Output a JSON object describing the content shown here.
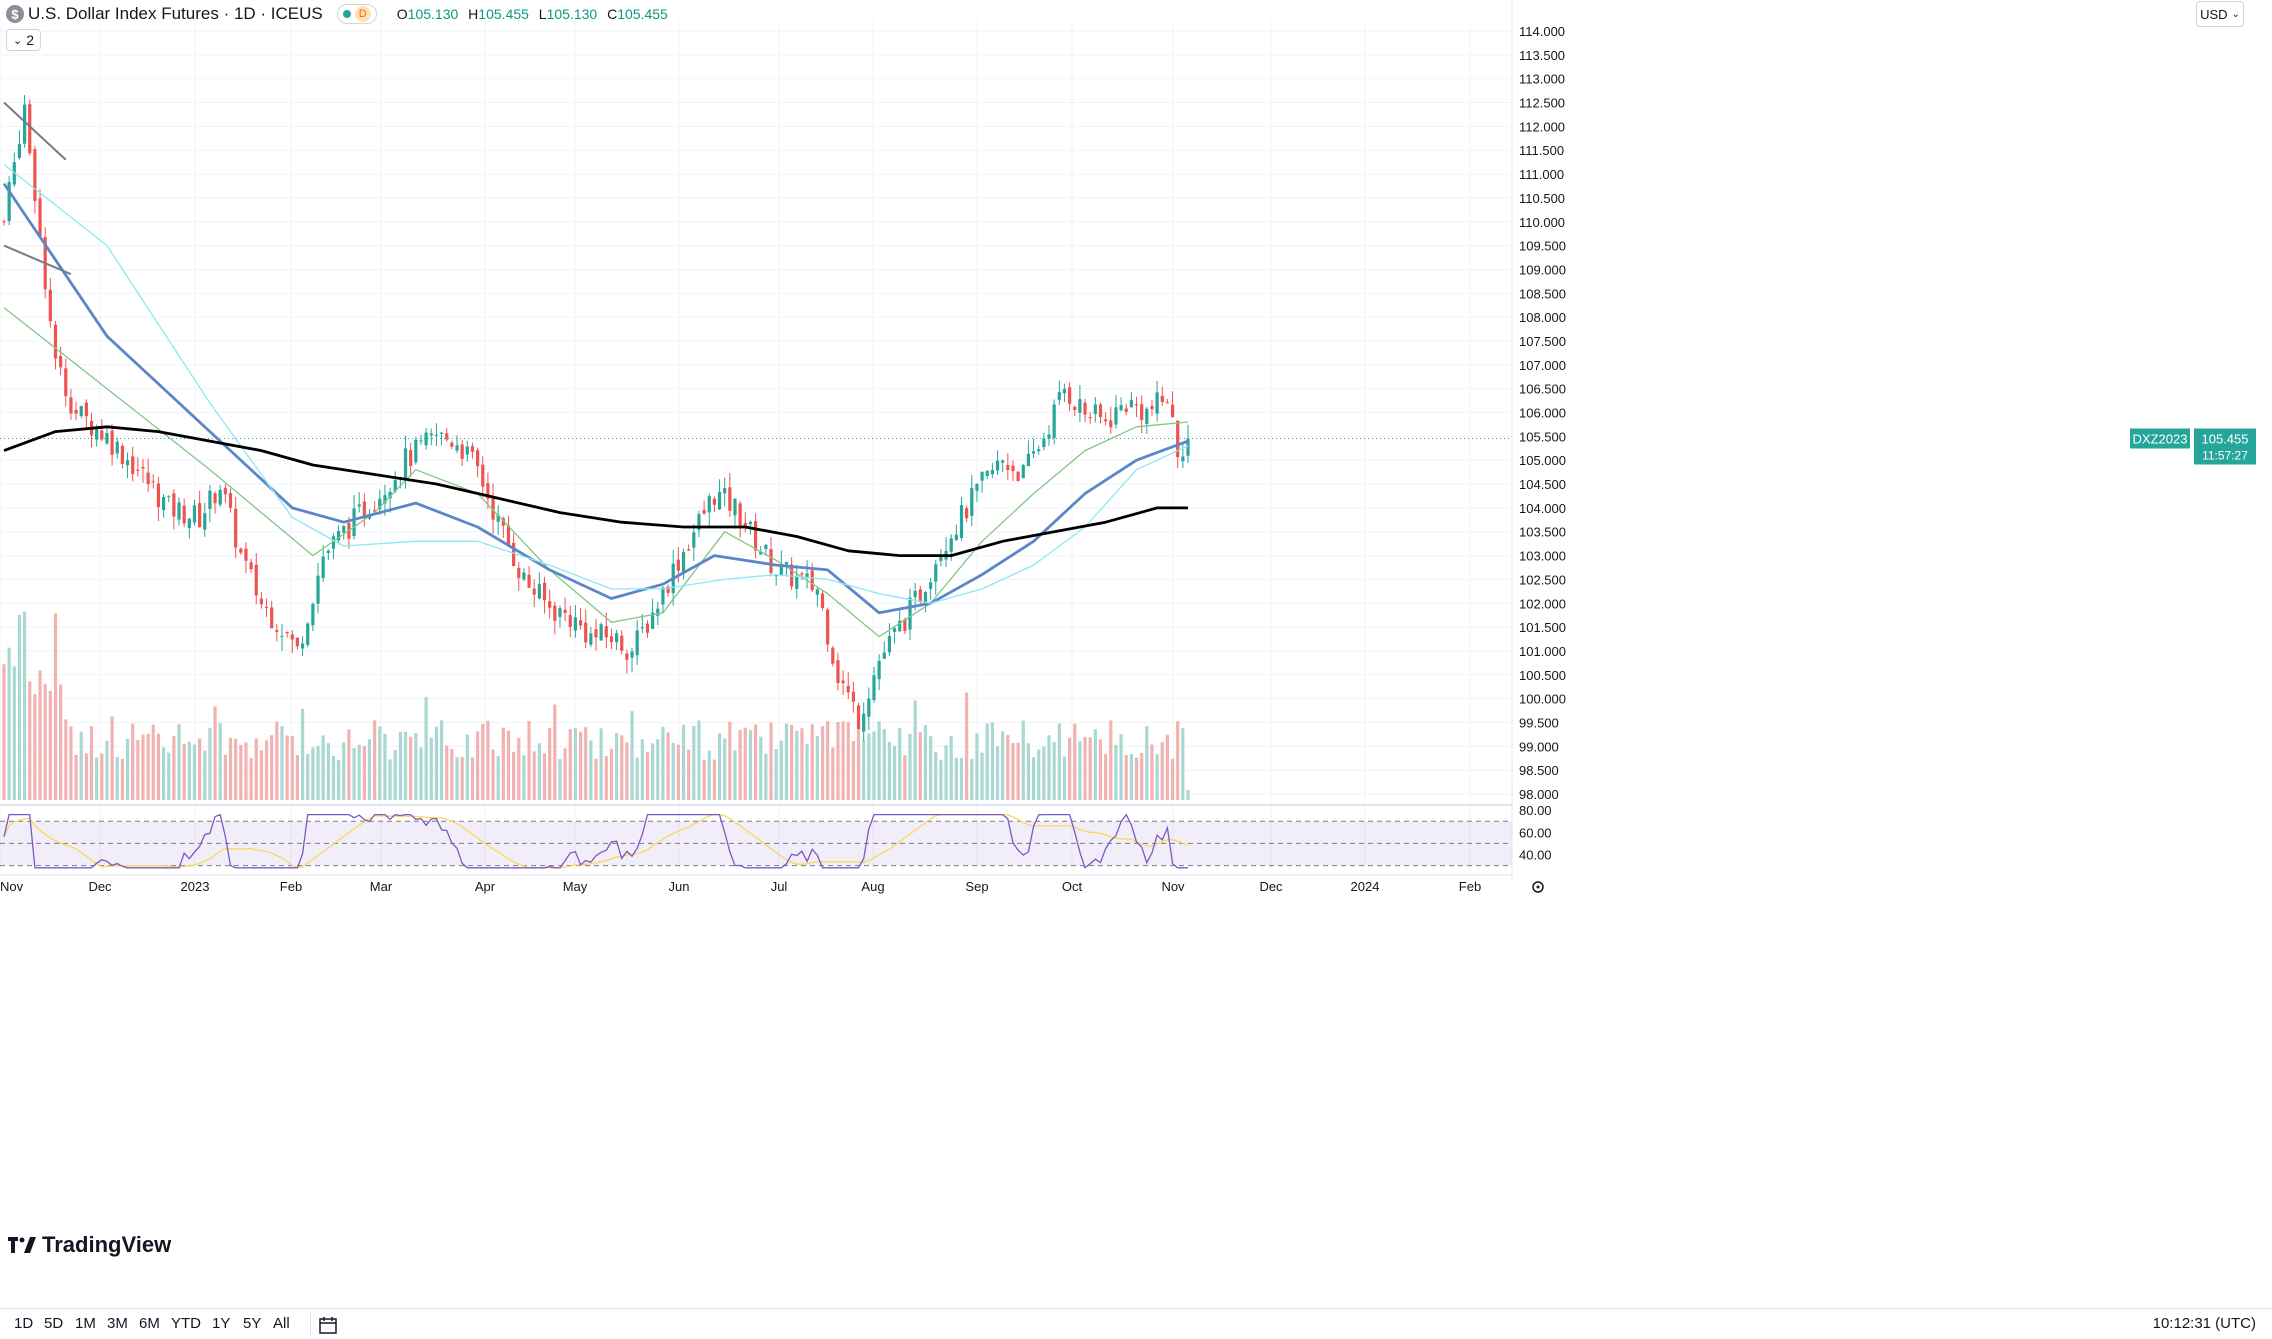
{
  "header": {
    "symbol_icon": "$",
    "symbol_title": "U.S. Dollar Index Futures · 1D · ICEUS",
    "status_badge": "D",
    "ohlc": {
      "o_label": "O",
      "o_value": "105.130",
      "h_label": "H",
      "h_value": "105.455",
      "l_label": "L",
      "l_value": "105.130",
      "c_label": "C",
      "c_value": "105.455"
    },
    "indicator_count": "2",
    "currency": "USD"
  },
  "price_axis": {
    "last_price": "105.455",
    "countdown": "11:57:27",
    "symbol_tag": "DXZ2023",
    "last_color": "#26a69a"
  },
  "brand": {
    "label": "TradingView"
  },
  "bottom_toolbar": {
    "timeframes": [
      "1D",
      "5D",
      "1M",
      "3M",
      "6M",
      "YTD",
      "1Y",
      "5Y",
      "All"
    ],
    "calendar_icon": "calendar-range-icon",
    "clock": "10:12:31 (UTC)"
  },
  "colors": {
    "up": "#26a69a",
    "down": "#ef5350",
    "ma_fast": "#81c784",
    "ma_mid": "#5b87c9",
    "ma_light": "#8be9f0",
    "ma_slow": "#000000",
    "rsi": "#7e57c2",
    "rsi_ma": "#f9d85b"
  },
  "chart_data": {
    "type": "candlestick",
    "title": "U.S. Dollar Index Futures · 1D · ICEUS",
    "x_labels": [
      "Nov",
      "Dec",
      "2023",
      "Feb",
      "Mar",
      "Apr",
      "May",
      "Jun",
      "Jul",
      "Aug",
      "Sep",
      "Oct",
      "Nov",
      "Dec",
      "2024",
      "Feb"
    ],
    "y_ticks": [
      "114.000",
      "113.500",
      "113.000",
      "112.500",
      "112.000",
      "111.500",
      "111.000",
      "110.500",
      "110.000",
      "109.500",
      "109.000",
      "108.500",
      "108.000",
      "107.500",
      "107.000",
      "106.500",
      "106.000",
      "105.500",
      "105.000",
      "104.500",
      "104.000",
      "103.500",
      "103.000",
      "102.500",
      "102.000",
      "101.500",
      "101.000",
      "100.500",
      "100.000",
      "99.500",
      "99.000",
      "98.500",
      "98.000"
    ],
    "ylim": [
      97.9,
      114.3
    ],
    "close_path": [
      [
        0,
        110
      ],
      [
        4,
        112.5
      ],
      [
        10,
        107
      ],
      [
        14,
        106
      ],
      [
        20,
        105.5
      ],
      [
        26,
        104.8
      ],
      [
        32,
        104
      ],
      [
        38,
        103.8
      ],
      [
        42,
        104.5
      ],
      [
        46,
        103
      ],
      [
        50,
        102
      ],
      [
        54,
        101.5
      ],
      [
        57,
        101
      ],
      [
        62,
        103
      ],
      [
        66,
        103.5
      ],
      [
        72,
        104.2
      ],
      [
        78,
        105
      ],
      [
        84,
        105.5
      ],
      [
        88,
        105.4
      ],
      [
        92,
        104.8
      ],
      [
        96,
        103.7
      ],
      [
        101,
        102.5
      ],
      [
        106,
        101.9
      ],
      [
        110,
        101.7
      ],
      [
        114,
        101.3
      ],
      [
        118,
        101.3
      ],
      [
        122,
        101.0
      ],
      [
        126,
        101.8
      ],
      [
        130,
        102.7
      ],
      [
        134,
        103.5
      ],
      [
        138,
        104.3
      ],
      [
        142,
        104.0
      ],
      [
        146,
        103.3
      ],
      [
        150,
        102.7
      ],
      [
        154,
        102.5
      ],
      [
        158,
        102.3
      ],
      [
        162,
        100.5
      ],
      [
        166,
        99.6
      ],
      [
        170,
        100.8
      ],
      [
        174,
        101.5
      ],
      [
        178,
        102.2
      ],
      [
        182,
        103.2
      ],
      [
        186,
        103.8
      ],
      [
        190,
        104.5
      ],
      [
        194,
        105.0
      ],
      [
        198,
        104.7
      ],
      [
        202,
        105.5
      ],
      [
        206,
        106.5
      ],
      [
        210,
        106.0
      ],
      [
        214,
        105.8
      ],
      [
        218,
        106.2
      ],
      [
        222,
        106.0
      ],
      [
        226,
        106.3
      ],
      [
        228,
        105.2
      ],
      [
        230,
        105.455
      ]
    ],
    "volume_level": [
      0.4,
      0.9,
      0.3,
      0.7,
      0.3
    ],
    "moving_averages": [
      {
        "points": [
          [
            0,
            108.2
          ],
          [
            20,
            106.5
          ],
          [
            40,
            104.8
          ],
          [
            60,
            103.0
          ],
          [
            72,
            103.9
          ],
          [
            80,
            104.8
          ],
          [
            92,
            104.3
          ],
          [
            106,
            102.7
          ],
          [
            118,
            101.6
          ],
          [
            128,
            101.8
          ],
          [
            140,
            103.5
          ],
          [
            150,
            102.9
          ],
          [
            160,
            102.2
          ],
          [
            170,
            101.3
          ],
          [
            180,
            102.0
          ],
          [
            190,
            103.3
          ],
          [
            200,
            104.3
          ],
          [
            210,
            105.2
          ],
          [
            220,
            105.7
          ],
          [
            230,
            105.8
          ]
        ]
      },
      {
        "points": [
          [
            0,
            110.8
          ],
          [
            20,
            107.6
          ],
          [
            40,
            105.6
          ],
          [
            56,
            104.0
          ],
          [
            66,
            103.7
          ],
          [
            80,
            104.1
          ],
          [
            92,
            103.6
          ],
          [
            106,
            102.7
          ],
          [
            118,
            102.1
          ],
          [
            128,
            102.4
          ],
          [
            138,
            103.0
          ],
          [
            150,
            102.8
          ],
          [
            160,
            102.7
          ],
          [
            170,
            101.8
          ],
          [
            180,
            102.0
          ],
          [
            190,
            102.6
          ],
          [
            200,
            103.3
          ],
          [
            210,
            104.3
          ],
          [
            220,
            105.0
          ],
          [
            230,
            105.4
          ]
        ]
      },
      {
        "points": [
          [
            0,
            111.2
          ],
          [
            20,
            109.5
          ],
          [
            40,
            106.2
          ],
          [
            56,
            103.8
          ],
          [
            66,
            103.2
          ],
          [
            80,
            103.3
          ],
          [
            92,
            103.3
          ],
          [
            106,
            102.8
          ],
          [
            118,
            102.3
          ],
          [
            128,
            102.3
          ],
          [
            140,
            102.5
          ],
          [
            150,
            102.6
          ],
          [
            160,
            102.5
          ],
          [
            170,
            102.2
          ],
          [
            180,
            102.0
          ],
          [
            190,
            102.3
          ],
          [
            200,
            102.8
          ],
          [
            210,
            103.6
          ],
          [
            220,
            104.8
          ],
          [
            230,
            105.3
          ]
        ]
      },
      {
        "points": [
          [
            0,
            105.2
          ],
          [
            10,
            105.6
          ],
          [
            20,
            105.7
          ],
          [
            30,
            105.6
          ],
          [
            40,
            105.4
          ],
          [
            50,
            105.2
          ],
          [
            60,
            104.9
          ],
          [
            72,
            104.7
          ],
          [
            84,
            104.5
          ],
          [
            96,
            104.2
          ],
          [
            108,
            103.9
          ],
          [
            120,
            103.7
          ],
          [
            132,
            103.6
          ],
          [
            144,
            103.6
          ],
          [
            154,
            103.4
          ],
          [
            164,
            103.1
          ],
          [
            174,
            103.0
          ],
          [
            184,
            103.0
          ],
          [
            194,
            103.3
          ],
          [
            204,
            103.5
          ],
          [
            214,
            103.7
          ],
          [
            224,
            104.0
          ],
          [
            230,
            104.0
          ]
        ]
      }
    ],
    "trend_lines": [
      {
        "from": [
          0,
          112.5
        ],
        "to": [
          12,
          111.3
        ]
      },
      {
        "from": [
          0,
          109.5
        ],
        "to": [
          13,
          108.9
        ]
      }
    ],
    "rsi_panel": {
      "y_ticks": [
        "80.00",
        "60.00",
        "40.00"
      ],
      "upper_band": 70,
      "lower_band": 30,
      "mid_line": 50,
      "ylim": [
        26,
        82
      ]
    }
  }
}
